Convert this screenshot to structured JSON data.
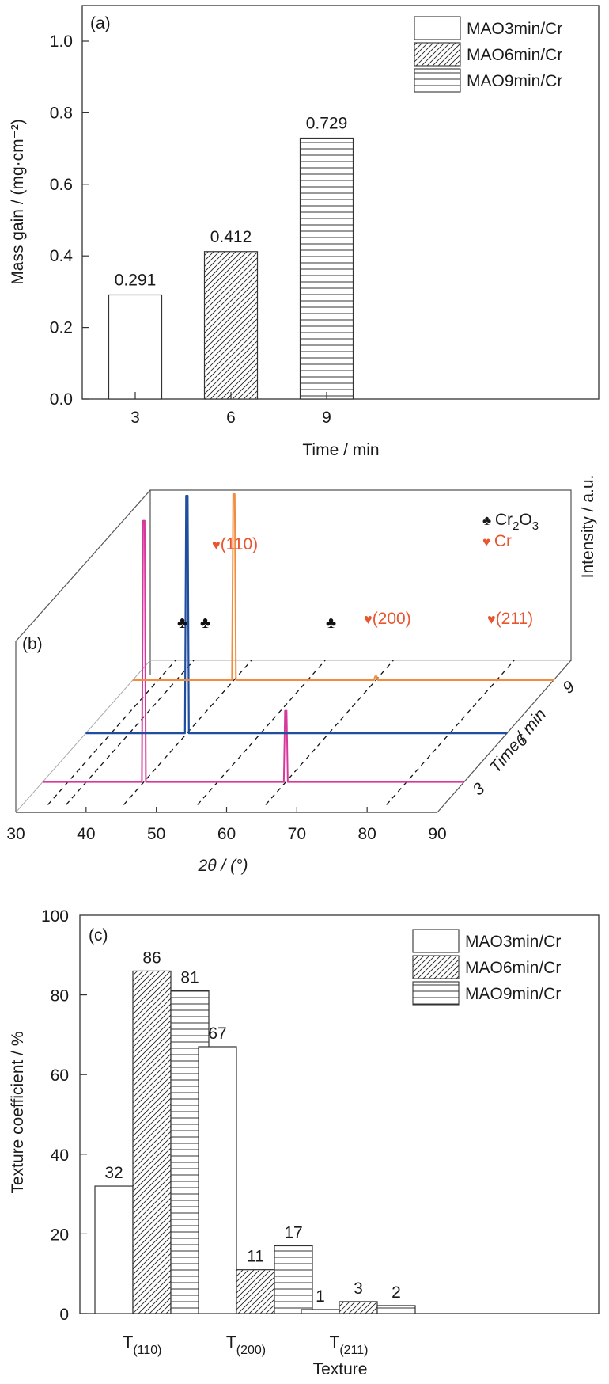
{
  "chart_data": [
    {
      "id": "a",
      "type": "bar",
      "panel_label": "(a)",
      "title": "",
      "xlabel": "Time / min",
      "ylabel": "Mass gain / (mg·cm⁻²)",
      "categories": [
        "3",
        "6",
        "9"
      ],
      "ylim": [
        0,
        1.0
      ],
      "yticks": [
        "0.0",
        "0.2",
        "0.4",
        "0.6",
        "0.8",
        "1.0"
      ],
      "ytick_values": [
        0,
        0.2,
        0.4,
        0.6,
        0.8,
        1.0
      ],
      "series": [
        {
          "name": "MAO3min/Cr",
          "pattern": "none",
          "category": "3",
          "value": 0.291,
          "label": "0.291"
        },
        {
          "name": "MAO6min/Cr",
          "pattern": "diagonal",
          "category": "6",
          "value": 0.412,
          "label": "0.412"
        },
        {
          "name": "MAO9min/Cr",
          "pattern": "horizontal",
          "category": "9",
          "value": 0.729,
          "label": "0.729"
        }
      ],
      "legend": [
        "MAO3min/Cr",
        "MAO6min/Cr",
        "MAO9min/Cr"
      ],
      "legend_position": "top-right",
      "grid": false
    },
    {
      "id": "b",
      "type": "line",
      "subtype": "3d-waterfall XRD",
      "panel_label": "(b)",
      "xlabel": "2θ / (°)",
      "ylabel": "Time / min",
      "zlabel": "Intensity / a.u.",
      "xlim": [
        30,
        90
      ],
      "xticks": [
        "30",
        "40",
        "50",
        "60",
        "70",
        "80",
        "90"
      ],
      "xtick_values": [
        30,
        40,
        50,
        60,
        70,
        80,
        90
      ],
      "depth_ticks": [
        "3",
        "6",
        "9"
      ],
      "series": [
        {
          "name": "3 min",
          "color": "#d6399b",
          "peaks": [
            {
              "x": 44.4,
              "rel": 1.0
            },
            {
              "x": 64.6,
              "rel": 0.3
            }
          ]
        },
        {
          "name": "6 min",
          "color": "#1f4e9e",
          "peaks": [
            {
              "x": 44.4,
              "rel": 1.0
            },
            {
              "x": 64.6,
              "rel": 0.0
            }
          ]
        },
        {
          "name": "9 min",
          "color": "#f28c3c",
          "peaks": [
            {
              "x": 44.4,
              "rel": 1.0
            },
            {
              "x": 64.6,
              "rel": 0.02
            }
          ]
        }
      ],
      "reference_lines_2theta": [
        33.6,
        36.2,
        44.4,
        54.9,
        64.6,
        81.8
      ],
      "annotations": [
        {
          "symbol": "♣",
          "text": "",
          "color": "#111111",
          "x": 33.6
        },
        {
          "symbol": "♣",
          "text": "",
          "color": "#111111",
          "x": 36.2
        },
        {
          "symbol": "♥",
          "text": "(110)",
          "color": "#e8552f",
          "x": 44.4
        },
        {
          "symbol": "♣",
          "text": "",
          "color": "#111111",
          "x": 54.9
        },
        {
          "symbol": "♥",
          "text": "(200)",
          "color": "#e8552f",
          "x": 64.6
        },
        {
          "symbol": "♥",
          "text": "(211)",
          "color": "#e8552f",
          "x": 81.8
        }
      ],
      "legend": [
        {
          "symbol": "♣",
          "label": "Cr",
          "sub1": "2",
          "label2": "O",
          "sub2": "3",
          "color": "#111111"
        },
        {
          "symbol": "♥",
          "label": "Cr",
          "color": "#e8552f"
        }
      ],
      "legend_position": "top-right"
    },
    {
      "id": "c",
      "type": "bar",
      "panel_label": "(c)",
      "xlabel": "Texture",
      "ylabel": "Texture coefficient / %",
      "categories": [
        {
          "main": "T",
          "sub": "(110)"
        },
        {
          "main": "T",
          "sub": "(200)"
        },
        {
          "main": "T",
          "sub": "(211)"
        }
      ],
      "ylim": [
        0,
        100
      ],
      "yticks": [
        "0",
        "20",
        "40",
        "60",
        "80",
        "100"
      ],
      "ytick_values": [
        0,
        20,
        40,
        60,
        80,
        100
      ],
      "series": [
        {
          "name": "MAO3min/Cr",
          "pattern": "none",
          "values": [
            32,
            67,
            1
          ],
          "labels": [
            "32",
            "67",
            "1"
          ]
        },
        {
          "name": "MAO6min/Cr",
          "pattern": "diagonal",
          "values": [
            86,
            11,
            3
          ],
          "labels": [
            "86",
            "11",
            "3"
          ]
        },
        {
          "name": "MAO9min/Cr",
          "pattern": "horizontal",
          "values": [
            81,
            17,
            2
          ],
          "labels": [
            "81",
            "17",
            "2"
          ]
        }
      ],
      "legend": [
        "MAO3min/Cr",
        "MAO6min/Cr",
        "MAO9min/Cr"
      ],
      "legend_position": "top-right",
      "grid": false
    }
  ]
}
